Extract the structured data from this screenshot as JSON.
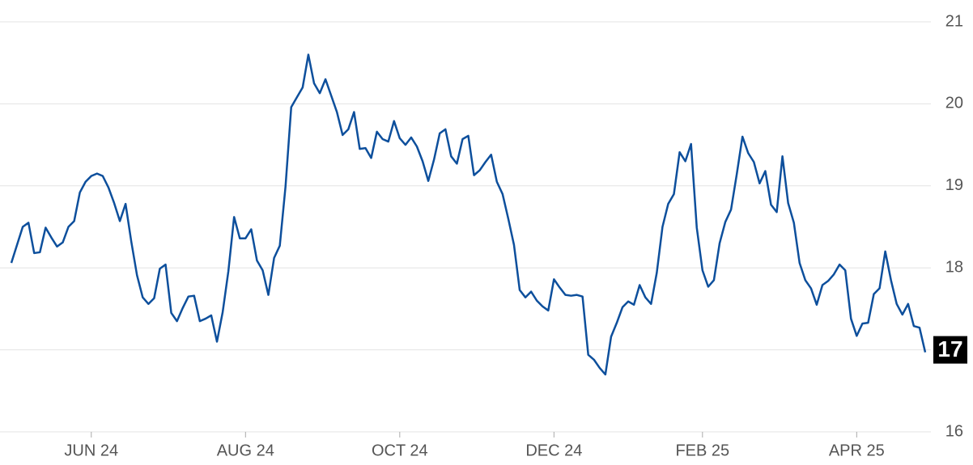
{
  "chart_data": {
    "type": "line",
    "categories": [
      null,
      null,
      null,
      null,
      null,
      null,
      null,
      null,
      null,
      null,
      null,
      null,
      null,
      null,
      "JUN 24",
      null,
      null,
      null,
      null,
      null,
      null,
      null,
      null,
      null,
      null,
      null,
      null,
      null,
      null,
      null,
      null,
      null,
      null,
      null,
      null,
      null,
      null,
      null,
      null,
      null,
      null,
      "AUG 24",
      null,
      null,
      null,
      null,
      null,
      null,
      null,
      null,
      null,
      null,
      null,
      null,
      null,
      null,
      null,
      null,
      null,
      null,
      null,
      null,
      null,
      null,
      null,
      null,
      null,
      null,
      "OCT 24",
      null,
      null,
      null,
      null,
      null,
      null,
      null,
      null,
      null,
      null,
      null,
      null,
      null,
      null,
      null,
      null,
      null,
      null,
      null,
      null,
      null,
      null,
      null,
      null,
      null,
      null,
      "DEC 24",
      null,
      null,
      null,
      null,
      null,
      null,
      null,
      null,
      null,
      null,
      null,
      null,
      null,
      null,
      null,
      null,
      null,
      null,
      null,
      null,
      null,
      null,
      null,
      null,
      null,
      "FEB 25",
      null,
      null,
      null,
      null,
      null,
      null,
      null,
      null,
      null,
      null,
      null,
      null,
      null,
      null,
      null,
      null,
      null,
      null,
      null,
      null,
      null,
      null,
      null,
      null,
      null,
      null,
      "APR 25",
      null,
      null,
      null,
      null,
      null,
      null,
      null,
      null,
      null,
      null,
      null,
      null
    ],
    "series": [
      {
        "color": "#0d4f9c",
        "values": [
          18.06,
          18.28,
          18.5,
          18.55,
          18.18,
          18.19,
          18.49,
          18.37,
          18.26,
          18.31,
          18.5,
          18.57,
          18.92,
          19.05,
          19.12,
          19.15,
          19.12,
          18.98,
          18.79,
          18.57,
          18.78,
          18.32,
          17.91,
          17.64,
          17.56,
          17.63,
          17.99,
          18.04,
          17.45,
          17.35,
          17.51,
          17.65,
          17.66,
          17.35,
          17.38,
          17.42,
          17.1,
          17.46,
          17.96,
          18.62,
          18.36,
          18.36,
          18.47,
          18.09,
          17.97,
          17.67,
          18.12,
          18.27,
          18.99,
          19.96,
          20.08,
          20.2,
          20.6,
          20.25,
          20.13,
          20.3,
          20.1,
          19.9,
          19.62,
          19.69,
          19.9,
          19.45,
          19.46,
          19.34,
          19.66,
          19.57,
          19.54,
          19.79,
          19.58,
          19.5,
          19.59,
          19.48,
          19.3,
          19.06,
          19.32,
          19.64,
          19.69,
          19.36,
          19.27,
          19.57,
          19.61,
          19.13,
          19.19,
          19.29,
          19.38,
          19.05,
          18.9,
          18.6,
          18.28,
          17.73,
          17.64,
          17.71,
          17.6,
          17.53,
          17.48,
          17.86,
          17.76,
          17.67,
          17.66,
          17.67,
          17.65,
          16.94,
          16.88,
          16.78,
          16.7,
          17.16,
          17.33,
          17.52,
          17.59,
          17.55,
          17.79,
          17.64,
          17.56,
          17.94,
          18.5,
          18.78,
          18.9,
          19.41,
          19.3,
          19.51,
          18.49,
          17.97,
          17.77,
          17.85,
          18.3,
          18.56,
          18.71,
          19.14,
          19.6,
          19.4,
          19.29,
          19.03,
          19.18,
          18.77,
          18.68,
          19.36,
          18.79,
          18.55,
          18.06,
          17.85,
          17.75,
          17.55,
          17.79,
          17.84,
          17.92,
          18.04,
          17.97,
          17.38,
          17.17,
          17.32,
          17.33,
          17.68,
          17.75,
          18.2,
          17.85,
          17.56,
          17.43,
          17.56,
          17.29,
          17.27,
          16.97
        ]
      }
    ],
    "ylim": [
      16,
      21
    ],
    "yticks": [
      16,
      17,
      18,
      19,
      20,
      21
    ],
    "grid": true
  }
}
